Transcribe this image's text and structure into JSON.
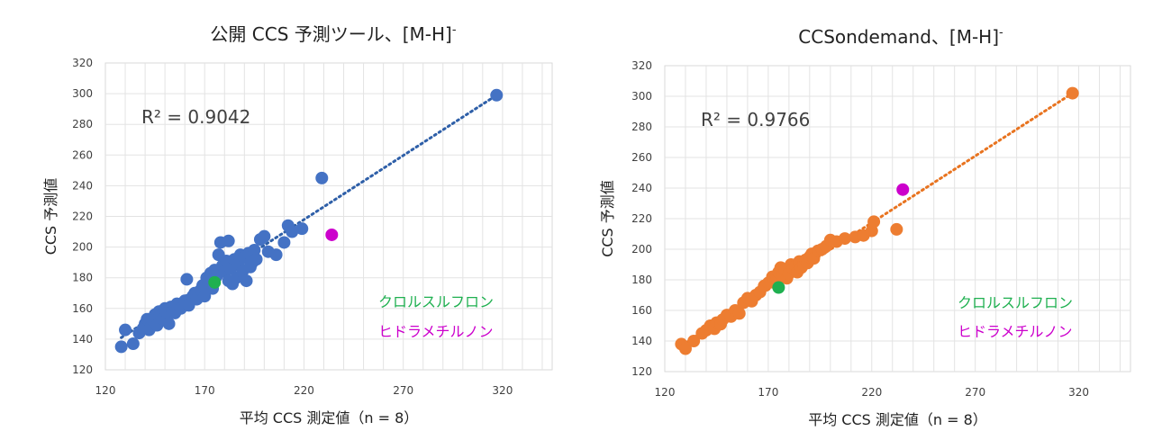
{
  "chart_data": [
    {
      "type": "scatter",
      "title": "公開 CCS 予測ツール、[M-H]",
      "title_sup": "-",
      "xlabel": "平均 CCS 測定値（n = 8）",
      "ylabel": "CCS 予測値",
      "xlim": [
        120,
        345
      ],
      "ylim": [
        120,
        320
      ],
      "xticks": [
        "120",
        "170",
        "220",
        "270",
        "320"
      ],
      "yticks": [
        "120",
        "140",
        "160",
        "180",
        "200",
        "220",
        "240",
        "260",
        "280",
        "300",
        "320"
      ],
      "grid": true,
      "r2_text": "R² = 0.9042",
      "colors": {
        "main": "#4472c4",
        "trend": "#2e5fa8",
        "highlight_green": "#1fb050",
        "highlight_magenta": "#cc00cc"
      },
      "trendline": [
        [
          128,
          141
        ],
        [
          317,
          299
        ]
      ],
      "legend": [
        {
          "label": "クロルスルフロン",
          "color": "#1fb050"
        },
        {
          "label": "ヒドラメチルノン",
          "color": "#cc00cc"
        }
      ],
      "series": [
        {
          "color": "#4472c4",
          "points": [
            [
              128,
              135
            ],
            [
              130,
              146
            ],
            [
              134,
              137
            ],
            [
              137,
              144
            ],
            [
              139,
              147
            ],
            [
              140,
              150
            ],
            [
              141,
              153
            ],
            [
              142,
              146
            ],
            [
              143,
              148
            ],
            [
              144,
              152
            ],
            [
              145,
              156
            ],
            [
              146,
              149
            ],
            [
              147,
              158
            ],
            [
              148,
              155
            ],
            [
              149,
              153
            ],
            [
              150,
              160
            ],
            [
              151,
              157
            ],
            [
              152,
              150
            ],
            [
              153,
              161
            ],
            [
              154,
              158
            ],
            [
              155,
              157
            ],
            [
              156,
              163
            ],
            [
              158,
              160
            ],
            [
              160,
              165
            ],
            [
              161,
              179
            ],
            [
              162,
              162
            ],
            [
              164,
              168
            ],
            [
              165,
              170
            ],
            [
              166,
              166
            ],
            [
              168,
              172
            ],
            [
              169,
              175
            ],
            [
              170,
              168
            ],
            [
              171,
              180
            ],
            [
              172,
              178
            ],
            [
              173,
              183
            ],
            [
              174,
              173
            ],
            [
              175,
              185
            ],
            [
              176,
              181
            ],
            [
              177,
              195
            ],
            [
              178,
              203
            ],
            [
              179,
              188
            ],
            [
              180,
              184
            ],
            [
              181,
              191
            ],
            [
              182,
              178
            ],
            [
              182,
              204
            ],
            [
              183,
              186
            ],
            [
              184,
              176
            ],
            [
              185,
              192
            ],
            [
              186,
              180
            ],
            [
              187,
              189
            ],
            [
              188,
              195
            ],
            [
              189,
              184
            ],
            [
              190,
              193
            ],
            [
              191,
              178
            ],
            [
              192,
              196
            ],
            [
              193,
              187
            ],
            [
              194,
              190
            ],
            [
              195,
              198
            ],
            [
              196,
              192
            ],
            [
              198,
              205
            ],
            [
              200,
              207
            ],
            [
              202,
              197
            ],
            [
              206,
              195
            ],
            [
              210,
              203
            ],
            [
              212,
              214
            ],
            [
              214,
              210
            ],
            [
              219,
              212
            ],
            [
              229,
              245
            ],
            [
              317,
              299
            ]
          ]
        },
        {
          "color": "#1fb050",
          "points": [
            [
              175,
              177
            ]
          ]
        },
        {
          "color": "#cc00cc",
          "points": [
            [
              234,
              208
            ]
          ]
        }
      ]
    },
    {
      "type": "scatter",
      "title": "CCSondemand、[M-H]",
      "title_sup": "-",
      "xlabel": "平均 CCS 測定値（n = 8）",
      "ylabel": "CCS 予測値",
      "xlim": [
        120,
        345
      ],
      "ylim": [
        120,
        320
      ],
      "xticks": [
        "120",
        "170",
        "220",
        "270",
        "320"
      ],
      "yticks": [
        "120",
        "140",
        "160",
        "180",
        "200",
        "220",
        "240",
        "260",
        "280",
        "300",
        "320"
      ],
      "grid": true,
      "r2_text": "R² = 0.9766",
      "colors": {
        "main": "#ed7d31",
        "trend": "#e8731f",
        "highlight_green": "#1fb050",
        "highlight_magenta": "#cc00cc"
      },
      "trendline": [
        [
          128,
          137
        ],
        [
          317,
          302
        ]
      ],
      "legend": [
        {
          "label": "クロルスルフロン",
          "color": "#1fb050"
        },
        {
          "label": "ヒドラメチルノン",
          "color": "#cc00cc"
        }
      ],
      "series": [
        {
          "color": "#ed7d31",
          "points": [
            [
              128,
              138
            ],
            [
              130,
              135
            ],
            [
              134,
              140
            ],
            [
              138,
              145
            ],
            [
              140,
              147
            ],
            [
              142,
              150
            ],
            [
              144,
              148
            ],
            [
              145,
              152
            ],
            [
              147,
              151
            ],
            [
              148,
              154
            ],
            [
              150,
              157
            ],
            [
              152,
              156
            ],
            [
              154,
              160
            ],
            [
              156,
              158
            ],
            [
              158,
              165
            ],
            [
              160,
              168
            ],
            [
              162,
              166
            ],
            [
              164,
              170
            ],
            [
              166,
              172
            ],
            [
              168,
              176
            ],
            [
              170,
              178
            ],
            [
              172,
              182
            ],
            [
              174,
              180
            ],
            [
              175,
              185
            ],
            [
              176,
              188
            ],
            [
              177,
              183
            ],
            [
              178,
              186
            ],
            [
              179,
              181
            ],
            [
              180,
              184
            ],
            [
              181,
              190
            ],
            [
              182,
              187
            ],
            [
              183,
              189
            ],
            [
              184,
              185
            ],
            [
              185,
              192
            ],
            [
              186,
              188
            ],
            [
              187,
              190
            ],
            [
              188,
              193
            ],
            [
              189,
              191
            ],
            [
              190,
              195
            ],
            [
              191,
              197
            ],
            [
              192,
              194
            ],
            [
              194,
              199
            ],
            [
              196,
              200
            ],
            [
              198,
              202
            ],
            [
              200,
              206
            ],
            [
              203,
              205
            ],
            [
              207,
              207
            ],
            [
              212,
              208
            ],
            [
              216,
              209
            ],
            [
              220,
              212
            ],
            [
              221,
              218
            ],
            [
              232,
              213
            ],
            [
              317,
              302
            ]
          ]
        },
        {
          "color": "#1fb050",
          "points": [
            [
              175,
              175
            ]
          ]
        },
        {
          "color": "#cc00cc",
          "points": [
            [
              235,
              239
            ]
          ]
        }
      ]
    }
  ]
}
